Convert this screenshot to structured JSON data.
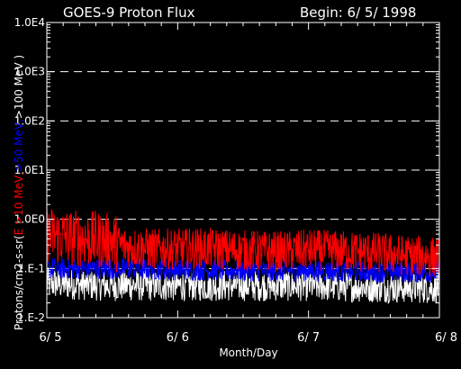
{
  "chart_data": {
    "type": "line",
    "title": "GOES-9 Proton Flux",
    "begin_label": "Begin: 6/ 5/ 1998",
    "xlabel": "Month/Day",
    "ylabel": {
      "prefix": "Protons/cm2-s-sr(",
      "red_part": "E >10 MeV,",
      "blue_part": ">50 MeV,",
      "white_part": ">100 MeV )"
    },
    "x_ticks": [
      "6/ 5",
      "6/ 6",
      "6/ 7",
      "6/ 8"
    ],
    "y_ticks": [
      "1.E-2",
      "1.E-1",
      "1.0E0",
      "1.0E1",
      "1.0E2",
      "1.0E3",
      "1.0E4"
    ],
    "y_scale": "log",
    "ylim": [
      0.01,
      10000
    ],
    "xlim_days": [
      0,
      3
    ],
    "grid": true,
    "colors": {
      "red": "#ff0000",
      "blue": "#0000ff",
      "white": "#ffffff",
      "grid": "#ffffff"
    },
    "series": [
      {
        "name": "E >10 MeV",
        "color": "#ff0000",
        "x": [
          0,
          0.1,
          0.2,
          0.3,
          0.4,
          0.5,
          0.6,
          0.8,
          1.0,
          1.2,
          1.4,
          1.6,
          1.8,
          2.0,
          2.2,
          2.4,
          2.6,
          2.8,
          3.0
        ],
        "values": [
          0.5,
          0.45,
          0.42,
          0.4,
          0.38,
          0.35,
          0.28,
          0.25,
          0.25,
          0.26,
          0.24,
          0.23,
          0.22,
          0.24,
          0.23,
          0.22,
          0.2,
          0.18,
          0.17
        ]
      },
      {
        "name": ">50 MeV",
        "color": "#0000ff",
        "x": [
          0,
          0.5,
          1.0,
          1.5,
          2.0,
          2.5,
          3.0
        ],
        "values": [
          0.1,
          0.1,
          0.095,
          0.09,
          0.09,
          0.085,
          0.085
        ]
      },
      {
        "name": ">100 MeV",
        "color": "#ffffff",
        "x": [
          0,
          0.5,
          1.0,
          1.5,
          2.0,
          2.5,
          3.0
        ],
        "values": [
          0.05,
          0.045,
          0.045,
          0.045,
          0.045,
          0.042,
          0.04
        ]
      }
    ]
  }
}
